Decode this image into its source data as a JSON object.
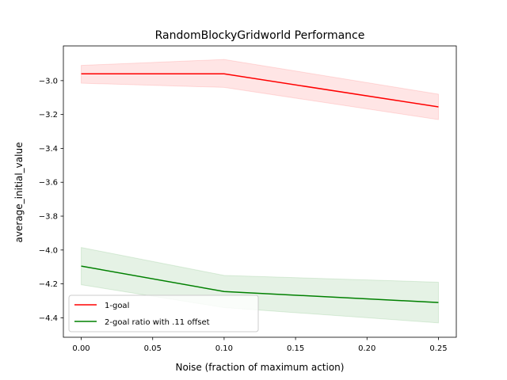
{
  "chart_data": {
    "type": "line",
    "title": "RandomBlockyGridworld Performance",
    "xlabel": "Noise (fraction of maximum action)",
    "ylabel": "average_initial_value",
    "xlim": [
      -0.0125,
      0.2625
    ],
    "ylim": [
      -4.515,
      -2.795
    ],
    "xticks": [
      0.0,
      0.05,
      0.1,
      0.15,
      0.2,
      0.25
    ],
    "xtick_labels": [
      "0.00",
      "0.05",
      "0.10",
      "0.15",
      "0.20",
      "0.25"
    ],
    "yticks": [
      -3.0,
      -3.2,
      -3.4,
      -3.6,
      -3.8,
      -4.0,
      -4.2,
      -4.4
    ],
    "ytick_labels": [
      "−3.0",
      "−3.2",
      "−3.4",
      "−3.6",
      "−3.8",
      "−4.0",
      "−4.2",
      "−4.4"
    ],
    "grid": false,
    "legend_position": "lower-left",
    "series": [
      {
        "name": "1-goal",
        "color": "#ff0000",
        "band_color": "#ff0000",
        "x": [
          0.0,
          0.1,
          0.25
        ],
        "y": [
          -2.96,
          -2.96,
          -3.155
        ],
        "lower": [
          -3.015,
          -3.04,
          -3.23
        ],
        "upper": [
          -2.91,
          -2.875,
          -3.08
        ]
      },
      {
        "name": "2-goal ratio with .11 offset",
        "color": "#008000",
        "band_color": "#008000",
        "x": [
          0.0,
          0.1,
          0.25
        ],
        "y": [
          -4.095,
          -4.245,
          -4.31
        ],
        "lower": [
          -4.205,
          -4.34,
          -4.43
        ],
        "upper": [
          -3.985,
          -4.15,
          -4.19
        ]
      }
    ]
  }
}
